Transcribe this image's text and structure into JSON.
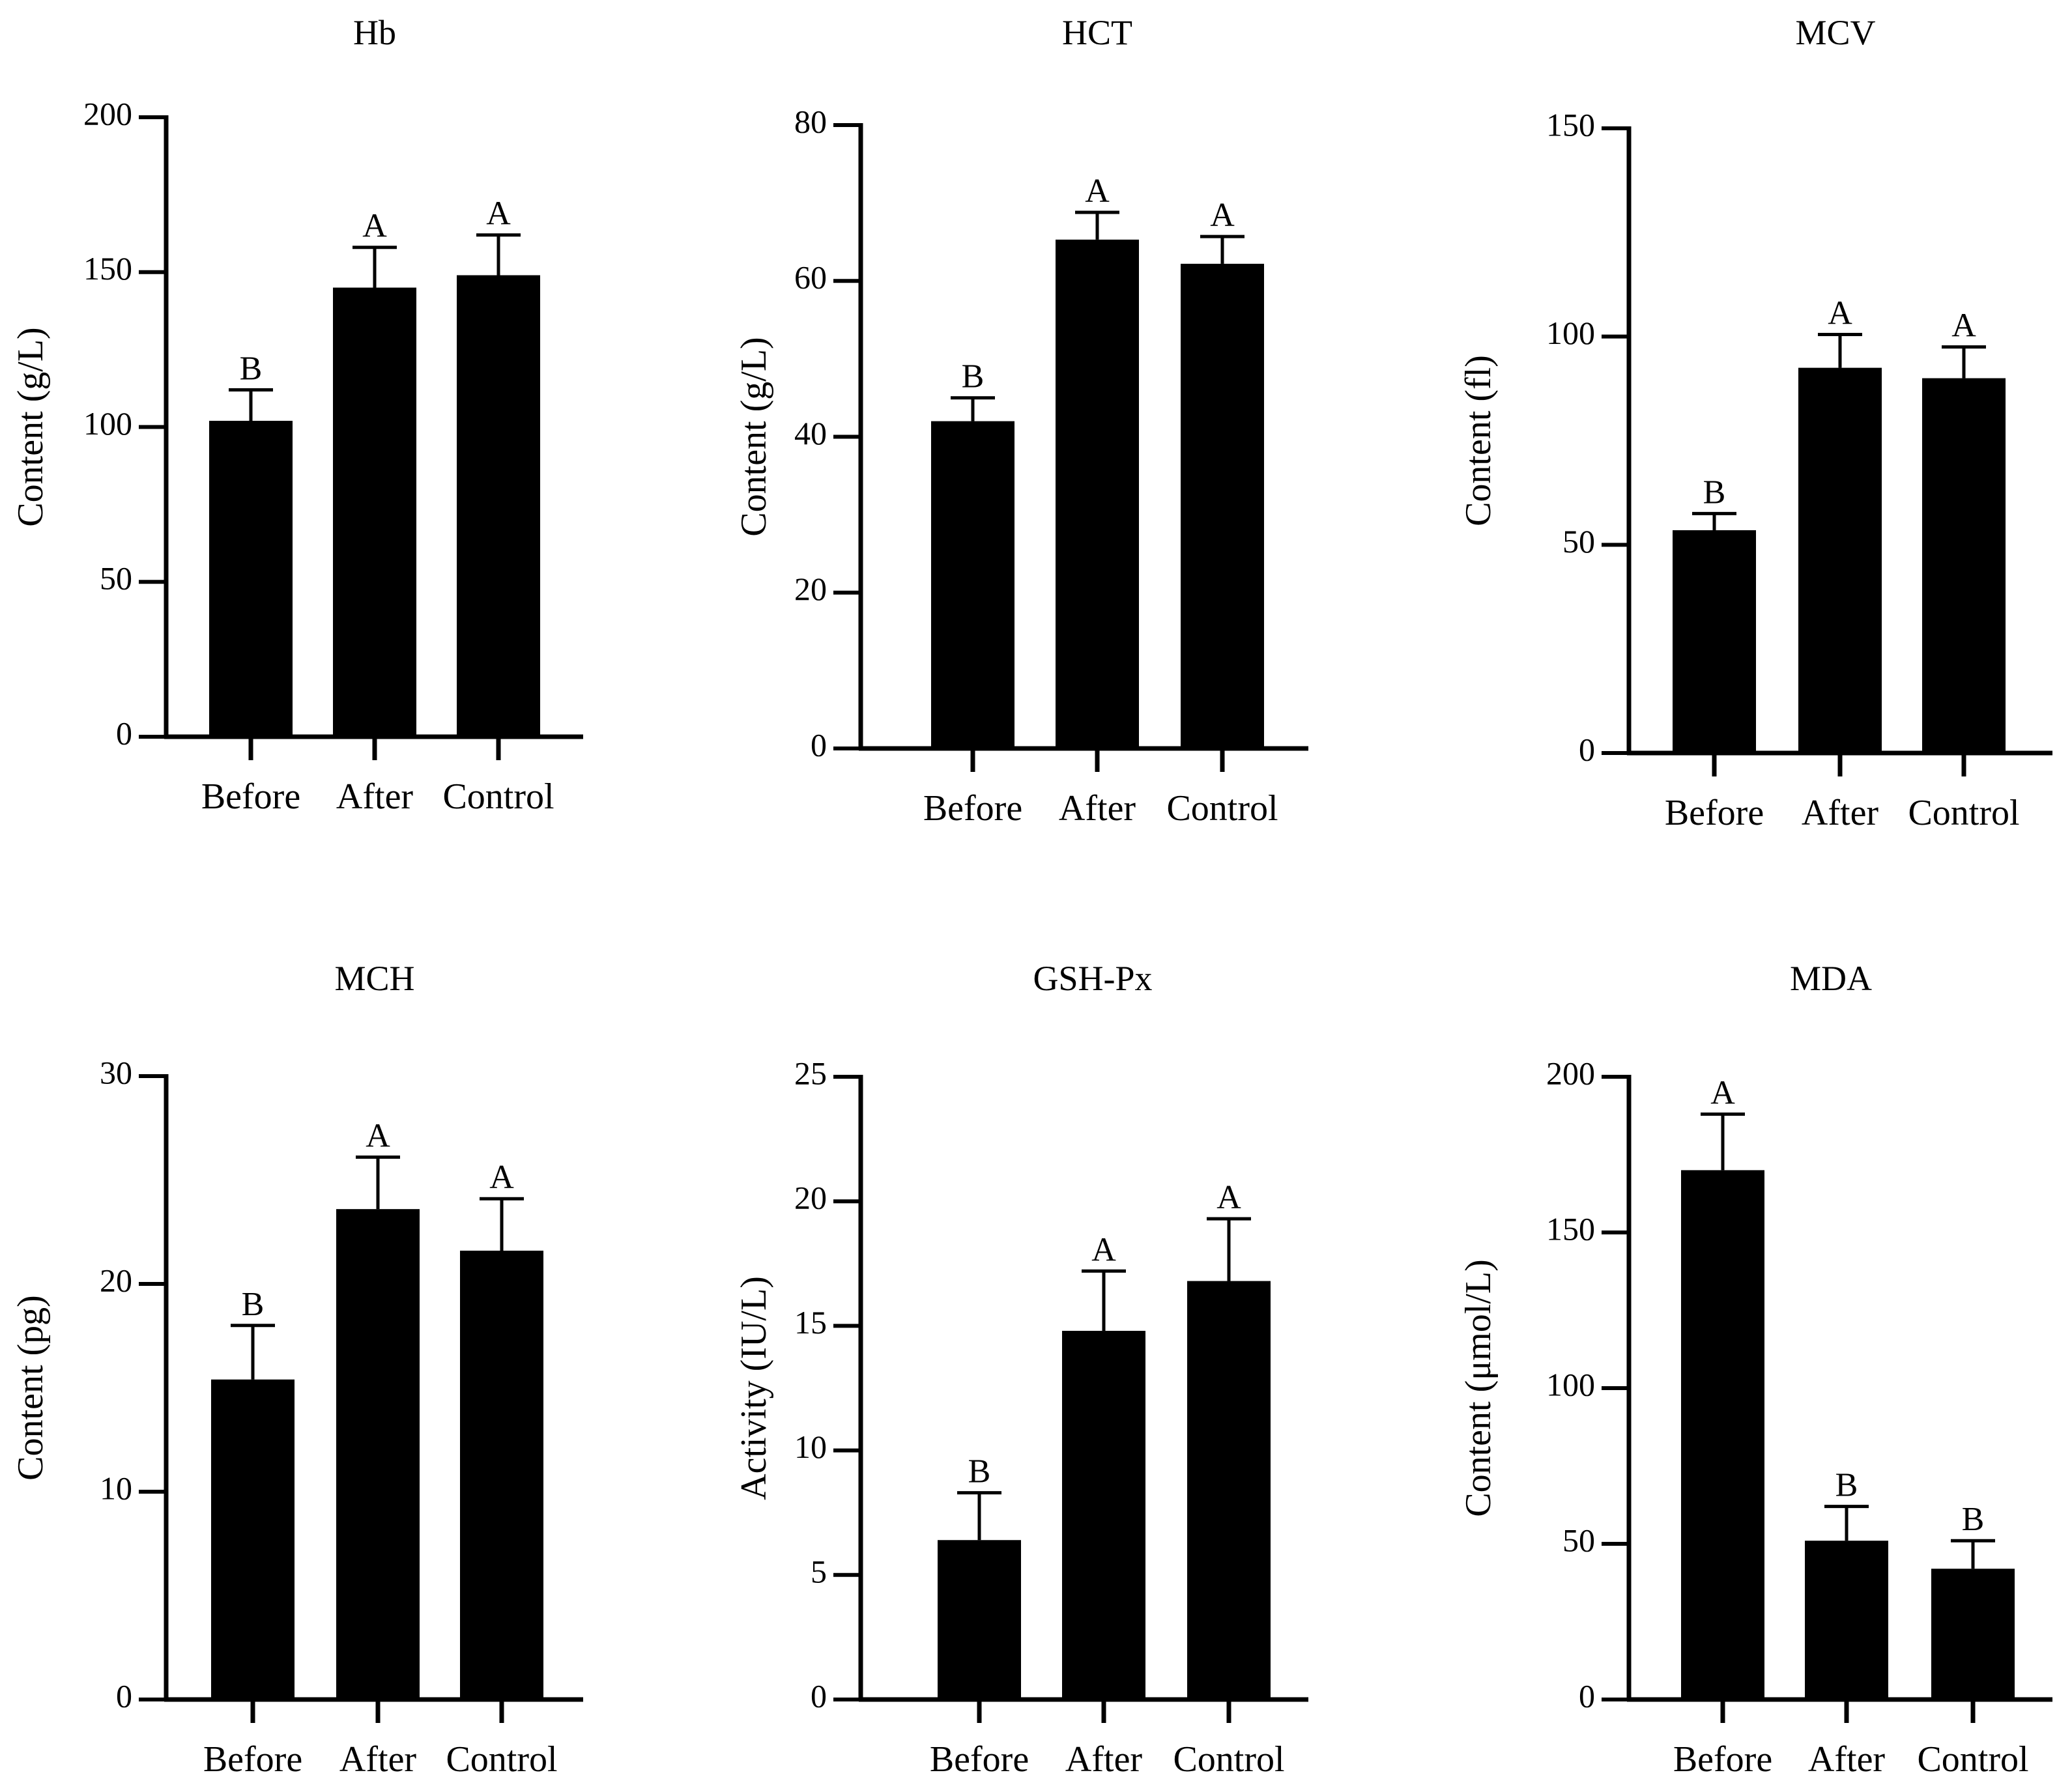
{
  "figure": {
    "bar_color": "#000000",
    "panels": [
      {
        "title": "Hb",
        "chart_data": {
          "type": "bar",
          "categories": [
            "Before",
            "After",
            "Control"
          ],
          "values": [
            102,
            145,
            149
          ],
          "errors": [
            10,
            13,
            13
          ],
          "significance": [
            "B",
            "A",
            "A"
          ],
          "ylabel": "Content (g/L)",
          "ylim": [
            0,
            200
          ],
          "yticks": [
            0,
            50,
            100,
            150,
            200
          ]
        }
      },
      {
        "title": "HCT",
        "chart_data": {
          "type": "bar",
          "categories": [
            "Before",
            "After",
            "Control"
          ],
          "values": [
            42,
            65.3,
            62.2
          ],
          "errors": [
            3,
            3.5,
            3.5
          ],
          "significance": [
            "B",
            "A",
            "A"
          ],
          "ylabel": "Content (g/L)",
          "ylim": [
            0,
            80
          ],
          "yticks": [
            0,
            20,
            40,
            60,
            80
          ]
        }
      },
      {
        "title": "MCV",
        "chart_data": {
          "type": "bar",
          "categories": [
            "Before",
            "After",
            "Control"
          ],
          "values": [
            53.5,
            92.5,
            90
          ],
          "errors": [
            4,
            8,
            7.5
          ],
          "significance": [
            "B",
            "A",
            "A"
          ],
          "ylabel": "Content (fl)",
          "ylim": [
            0,
            150
          ],
          "yticks": [
            0,
            50,
            100,
            150
          ]
        }
      },
      {
        "title": "MCH",
        "chart_data": {
          "type": "bar",
          "categories": [
            "Before",
            "After",
            "Control"
          ],
          "values": [
            15.4,
            23.6,
            21.6
          ],
          "errors": [
            2.6,
            2.5,
            2.5
          ],
          "significance": [
            "B",
            "A",
            "A"
          ],
          "ylabel": "Content (pg)",
          "ylim": [
            0,
            30
          ],
          "yticks": [
            0,
            10,
            20,
            30
          ]
        }
      },
      {
        "title": "GSH-Px",
        "chart_data": {
          "type": "bar",
          "categories": [
            "Before",
            "After",
            "Control"
          ],
          "values": [
            6.4,
            14.8,
            16.8
          ],
          "errors": [
            1.9,
            2.4,
            2.5
          ],
          "significance": [
            "B",
            "A",
            "A"
          ],
          "ylabel": "Activity (IU/L)",
          "ylim": [
            0,
            25
          ],
          "yticks": [
            0,
            5,
            10,
            15,
            20,
            25
          ]
        }
      },
      {
        "title": "MDA",
        "chart_data": {
          "type": "bar",
          "categories": [
            "Before",
            "After",
            "Control"
          ],
          "values": [
            170,
            51,
            42
          ],
          "errors": [
            18,
            11,
            9
          ],
          "significance": [
            "A",
            "B",
            "B"
          ],
          "ylabel": "Content (μmol/L)",
          "ylim": [
            0,
            200
          ],
          "yticks": [
            0,
            50,
            100,
            150,
            200
          ]
        }
      }
    ]
  }
}
